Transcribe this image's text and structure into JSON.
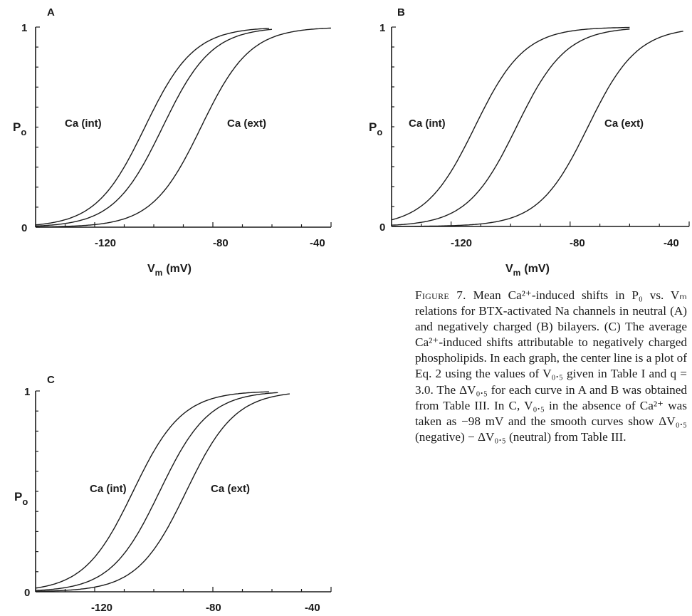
{
  "panels": [
    {
      "id": "A",
      "letter": "A",
      "ylabel": "P",
      "ylabel_sub": "o",
      "xlabel": "V",
      "xlabel_sub": "m",
      "xlabel_unit": "(mV)",
      "yticks": [
        "0",
        "1"
      ],
      "xticks": [
        "-120",
        "-80",
        "-40"
      ],
      "label_left": "Ca (int)",
      "label_right": "Ca (ext)"
    },
    {
      "id": "B",
      "letter": "B",
      "ylabel": "P",
      "ylabel_sub": "o",
      "xlabel": "V",
      "xlabel_sub": "m",
      "xlabel_unit": "(mV)",
      "yticks": [
        "0",
        "1"
      ],
      "xticks": [
        "-120",
        "-80",
        "-40"
      ],
      "label_left": "Ca (int)",
      "label_right": "Ca (ext)"
    },
    {
      "id": "C",
      "letter": "C",
      "ylabel": "P",
      "ylabel_sub": "o",
      "xlabel": "V",
      "xlabel_sub": "m",
      "xlabel_unit": "(mV)",
      "yticks": [
        "0",
        "1"
      ],
      "xticks": [
        "-120",
        "-80",
        "-40"
      ],
      "label_left": "Ca (int)",
      "label_right": "Ca (ext)"
    }
  ],
  "chart_data": [
    {
      "type": "line",
      "panel": "A",
      "xlim": [
        -140,
        -40
      ],
      "ylim": [
        0,
        1
      ],
      "x_ticks": [
        -120,
        -80,
        -40
      ],
      "y_ticks": [
        0,
        1
      ],
      "slope": 8.3,
      "series": [
        {
          "v_half": -103,
          "x_range": [
            -140,
            -61
          ]
        },
        {
          "v_half": -97,
          "x_range": [
            -140,
            -60
          ]
        },
        {
          "v_half": -84,
          "x_range": [
            -140,
            -40
          ]
        }
      ]
    },
    {
      "type": "line",
      "panel": "B",
      "xlim": [
        -140,
        -40
      ],
      "ylim": [
        0,
        1
      ],
      "x_ticks": [
        -120,
        -80,
        -40
      ],
      "y_ticks": [
        0,
        1
      ],
      "slope": 8.3,
      "series": [
        {
          "v_half": -112,
          "x_range": [
            -140,
            -60
          ]
        },
        {
          "v_half": -98,
          "x_range": [
            -140,
            -60
          ]
        },
        {
          "v_half": -74,
          "x_range": [
            -140,
            -42
          ]
        }
      ]
    },
    {
      "type": "line",
      "panel": "C",
      "xlim": [
        -140,
        -40
      ],
      "ylim": [
        0,
        1
      ],
      "x_ticks": [
        -120,
        -80,
        -40
      ],
      "y_ticks": [
        0,
        1
      ],
      "slope": 8.3,
      "series": [
        {
          "v_half": -107,
          "x_range": [
            -140,
            -61
          ]
        },
        {
          "v_half": -98,
          "x_range": [
            -140,
            -58
          ]
        },
        {
          "v_half": -89,
          "x_range": [
            -140,
            -54
          ]
        }
      ]
    }
  ],
  "caption": {
    "label": "Figure 7.",
    "text": "Mean Ca²⁺-induced shifts in P₀ vs. Vₘ relations for BTX-activated Na channels in neutral (A) and negatively charged (B) bilayers. (C) The average Ca²⁺-induced shifts attributable to negatively charged phospholipids. In each graph, the center line is a plot of Eq. 2 using the values of V₀.₅ given in Table I and q = 3.0. The ΔV₀.₅ for each curve in A and B was obtained from Table III. In C, V₀.₅ in the absence of Ca²⁺ was taken as −98 mV and the smooth curves show ΔV₀.₅ (negative) − ΔV₀.₅ (neutral) from Table III."
  }
}
